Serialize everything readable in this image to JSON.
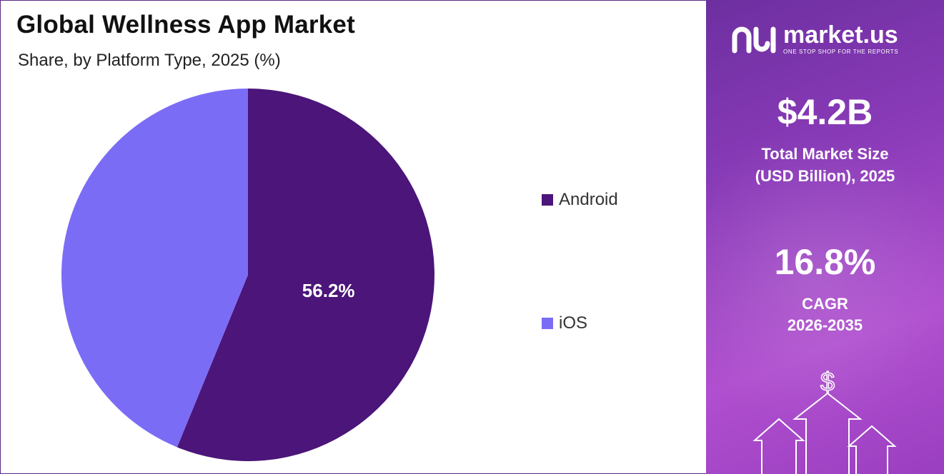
{
  "header": {
    "title": "Global Wellness App Market",
    "subtitle": "Share, by Platform Type, 2025 (%)"
  },
  "chart_data": {
    "type": "pie",
    "title": "Global Wellness App Market",
    "subtitle": "Share, by Platform Type, 2025 (%)",
    "categories": [
      "Android",
      "iOS"
    ],
    "values": [
      56.2,
      43.8
    ],
    "data_labels": [
      "56.2%",
      ""
    ],
    "colors": [
      "#4b1579",
      "#7b6cf6"
    ],
    "legend_position": "right"
  },
  "sidebar": {
    "brand": "market.us",
    "tagline": "ONE STOP SHOP FOR THE REPORTS",
    "market_size": {
      "value": "$4.2B",
      "label_line1": "Total Market Size",
      "label_line2": "(USD Billion), 2025"
    },
    "cagr": {
      "value": "16.8%",
      "label_line1": "CAGR",
      "label_line2": "2026-2035"
    },
    "icon": "dollar-growth-arrows-icon"
  }
}
